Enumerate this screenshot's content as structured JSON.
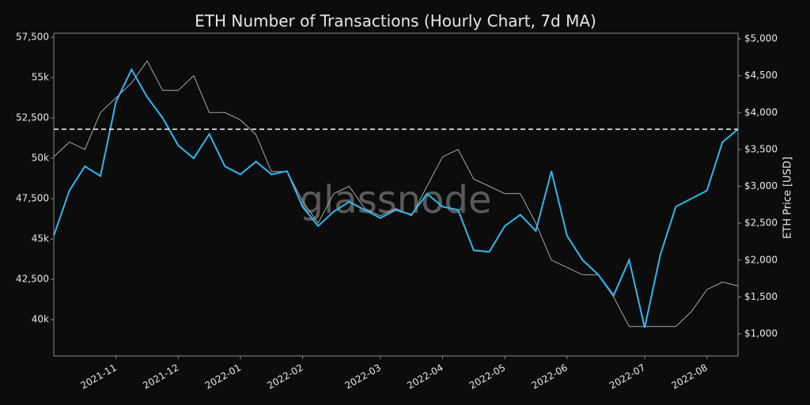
{
  "chart_data": {
    "type": "line",
    "title": "ETH Number of Transactions (Hourly Chart, 7d MA)",
    "watermark": "glassnode",
    "y2label": "ETH Price [USD]",
    "categories": [
      null,
      null,
      null,
      null,
      "2021-11",
      null,
      null,
      null,
      "2021-12",
      null,
      null,
      null,
      "2022-01",
      null,
      null,
      null,
      "2022-02",
      null,
      null,
      null,
      null,
      "2022-03",
      null,
      null,
      null,
      "2022-04",
      null,
      null,
      null,
      "2022-05",
      null,
      null,
      null,
      "2022-06",
      null,
      null,
      null,
      null,
      "2022-07",
      null,
      null,
      null,
      "2022-08",
      null,
      null
    ],
    "series": [
      {
        "name": "Number of Transactions",
        "color": "#2eb8f0",
        "values": [
          45200,
          48000,
          49500,
          48900,
          53500,
          55500,
          53800,
          52500,
          50800,
          50000,
          51500,
          49500,
          49000,
          49800,
          49000,
          49200,
          47000,
          45800,
          46700,
          47300,
          46800,
          46300,
          46800,
          46500,
          47800,
          47000,
          46800,
          44300,
          44200,
          45800,
          46500,
          45500,
          49200,
          45200,
          43700,
          42800,
          41500,
          43700,
          39500,
          44000,
          47000,
          47500,
          48000,
          51000,
          51800
        ]
      },
      {
        "name": "ETH Price",
        "color": "#a8a8a8",
        "axis": "y2",
        "values": [
          3400,
          3600,
          3500,
          4000,
          4200,
          4400,
          4700,
          4300,
          4300,
          4500,
          4000,
          4000,
          3900,
          3700,
          3200,
          3200,
          2800,
          2500,
          2900,
          3000,
          2700,
          2600,
          2700,
          2600,
          3000,
          3400,
          3500,
          3100,
          3000,
          2900,
          2900,
          2500,
          2000,
          1900,
          1800,
          1800,
          1500,
          1100,
          1100,
          1100,
          1100,
          1300,
          1600,
          1700,
          1650
        ]
      }
    ],
    "reference_line": 51800,
    "ylim": [
      37750,
      57750
    ],
    "yticks": [
      {
        "value": 40000,
        "label": "40k"
      },
      {
        "value": 42500,
        "label": "42,500"
      },
      {
        "value": 45000,
        "label": "45k"
      },
      {
        "value": 47500,
        "label": "47,500"
      },
      {
        "value": 50000,
        "label": "50k"
      },
      {
        "value": 52500,
        "label": "52,500"
      },
      {
        "value": 55000,
        "label": "55k"
      },
      {
        "value": 57500,
        "label": "57,500"
      }
    ],
    "y2lim": [
      700,
      5075
    ],
    "y2ticks": [
      {
        "value": 1000,
        "label": "$1,000"
      },
      {
        "value": 1500,
        "label": "$1,500"
      },
      {
        "value": 2000,
        "label": "$2,000"
      },
      {
        "value": 2500,
        "label": "$2,500"
      },
      {
        "value": 3000,
        "label": "$3,000"
      },
      {
        "value": 3500,
        "label": "$3,500"
      },
      {
        "value": 4000,
        "label": "$4,000"
      },
      {
        "value": 4500,
        "label": "$4,500"
      },
      {
        "value": 5000,
        "label": "$5,000"
      }
    ]
  }
}
